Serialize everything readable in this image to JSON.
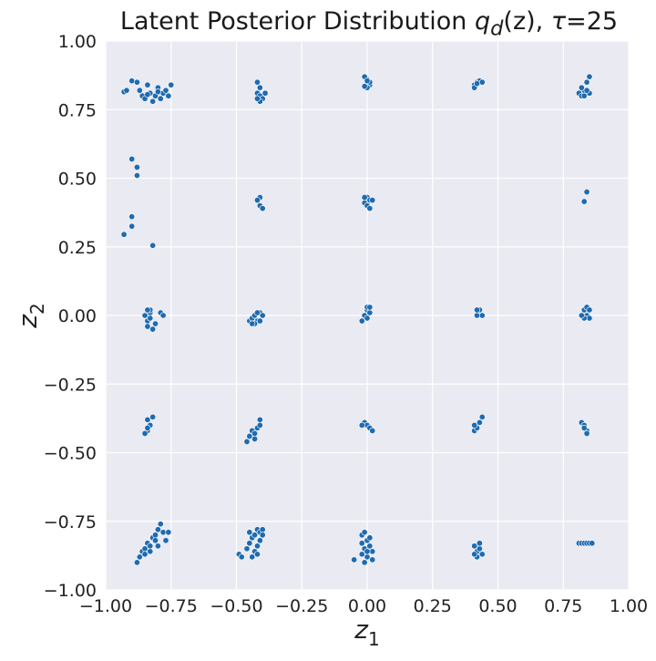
{
  "chart_data": {
    "type": "scatter",
    "title": {
      "prefix": "Latent Posterior Distribution ",
      "q": "q",
      "q_sub": "d",
      "arg": "(z), ",
      "tau": "τ",
      "tau_value": "=25"
    },
    "xlabel": {
      "main": "z",
      "sub": "1"
    },
    "ylabel": {
      "main": "z",
      "sub": "2"
    },
    "xlim": [
      -1.0,
      1.0
    ],
    "ylim": [
      -1.0,
      1.0
    ],
    "xticks": [
      -1.0,
      -0.75,
      -0.5,
      -0.25,
      0.0,
      0.25,
      0.5,
      0.75,
      1.0
    ],
    "yticks": [
      -1.0,
      -0.75,
      -0.5,
      -0.25,
      0.0,
      0.25,
      0.5,
      0.75,
      1.0
    ],
    "xtick_labels": [
      "−1.00",
      "−0.75",
      "−0.50",
      "−0.25",
      "0.00",
      "0.25",
      "0.50",
      "0.75",
      "1.00"
    ],
    "ytick_labels": [
      "−1.00",
      "−0.75",
      "−0.50",
      "−0.25",
      "0.00",
      "0.25",
      "0.50",
      "0.75",
      "1.00"
    ],
    "grid": true,
    "legend": "none",
    "colors": {
      "background": "#eaeaf2",
      "grid": "#ffffff",
      "marker": "#1f6bb0",
      "marker_edge": "#ffffff"
    },
    "points": [
      [
        -0.93,
        0.815
      ],
      [
        -0.92,
        0.82
      ],
      [
        -0.9,
        0.855
      ],
      [
        -0.88,
        0.85
      ],
      [
        -0.87,
        0.82
      ],
      [
        -0.86,
        0.8
      ],
      [
        -0.85,
        0.79
      ],
      [
        -0.84,
        0.84
      ],
      [
        -0.83,
        0.81
      ],
      [
        -0.82,
        0.78
      ],
      [
        -0.81,
        0.8
      ],
      [
        -0.8,
        0.83
      ],
      [
        -0.79,
        0.79
      ],
      [
        -0.78,
        0.81
      ],
      [
        -0.77,
        0.82
      ],
      [
        -0.76,
        0.8
      ],
      [
        -0.75,
        0.84
      ],
      [
        -0.84,
        0.805
      ],
      [
        -0.8,
        0.815
      ],
      [
        -0.42,
        0.85
      ],
      [
        -0.41,
        0.83
      ],
      [
        -0.42,
        0.81
      ],
      [
        -0.41,
        0.8
      ],
      [
        -0.4,
        0.79
      ],
      [
        -0.41,
        0.78
      ],
      [
        -0.39,
        0.81
      ],
      [
        -0.42,
        0.79
      ],
      [
        0.0,
        0.86
      ],
      [
        -0.01,
        0.87
      ],
      [
        0.0,
        0.845
      ],
      [
        0.01,
        0.84
      ],
      [
        0.0,
        0.83
      ],
      [
        0.01,
        0.85
      ],
      [
        -0.01,
        0.835
      ],
      [
        0.0,
        0.855
      ],
      [
        0.41,
        0.84
      ],
      [
        0.42,
        0.85
      ],
      [
        0.43,
        0.855
      ],
      [
        0.41,
        0.83
      ],
      [
        0.42,
        0.845
      ],
      [
        0.44,
        0.85
      ],
      [
        0.81,
        0.81
      ],
      [
        0.82,
        0.8
      ],
      [
        0.83,
        0.82
      ],
      [
        0.84,
        0.85
      ],
      [
        0.85,
        0.87
      ],
      [
        0.82,
        0.83
      ],
      [
        0.83,
        0.8
      ],
      [
        0.85,
        0.81
      ],
      [
        0.84,
        0.82
      ],
      [
        -0.9,
        0.57
      ],
      [
        -0.88,
        0.54
      ],
      [
        -0.88,
        0.51
      ],
      [
        -0.9,
        0.36
      ],
      [
        -0.9,
        0.325
      ],
      [
        -0.93,
        0.295
      ],
      [
        -0.82,
        0.255
      ],
      [
        -0.41,
        0.43
      ],
      [
        -0.41,
        0.4
      ],
      [
        -0.4,
        0.39
      ],
      [
        -0.42,
        0.42
      ],
      [
        0.0,
        0.43
      ],
      [
        0.01,
        0.42
      ],
      [
        -0.01,
        0.41
      ],
      [
        0.0,
        0.4
      ],
      [
        0.01,
        0.39
      ],
      [
        0.02,
        0.42
      ],
      [
        -0.01,
        0.43
      ],
      [
        0.84,
        0.45
      ],
      [
        0.83,
        0.415
      ],
      [
        -0.85,
        0.0
      ],
      [
        -0.84,
        -0.02
      ],
      [
        -0.83,
        0.01
      ],
      [
        -0.84,
        -0.04
      ],
      [
        -0.82,
        -0.05
      ],
      [
        -0.81,
        -0.03
      ],
      [
        -0.83,
        0.02
      ],
      [
        -0.79,
        0.01
      ],
      [
        -0.78,
        0.0
      ],
      [
        -0.84,
        0.02
      ],
      [
        -0.83,
        -0.01
      ],
      [
        -0.45,
        -0.02
      ],
      [
        -0.44,
        -0.01
      ],
      [
        -0.43,
        0.0
      ],
      [
        -0.42,
        -0.02
      ],
      [
        -0.41,
        0.01
      ],
      [
        -0.4,
        0.0
      ],
      [
        -0.43,
        -0.03
      ],
      [
        -0.41,
        -0.02
      ],
      [
        -0.42,
        0.01
      ],
      [
        -0.44,
        -0.03
      ],
      [
        0.0,
        0.02
      ],
      [
        -0.01,
        0.0
      ],
      [
        0.0,
        -0.01
      ],
      [
        0.01,
        0.01
      ],
      [
        -0.02,
        -0.02
      ],
      [
        0.0,
        0.03
      ],
      [
        0.01,
        0.03
      ],
      [
        0.42,
        0.0
      ],
      [
        0.43,
        0.02
      ],
      [
        0.44,
        0.0
      ],
      [
        0.42,
        0.02
      ],
      [
        0.83,
        0.02
      ],
      [
        0.84,
        0.0
      ],
      [
        0.85,
        -0.01
      ],
      [
        0.83,
        -0.01
      ],
      [
        0.84,
        0.03
      ],
      [
        0.82,
        0.0
      ],
      [
        0.85,
        0.02
      ],
      [
        -0.84,
        -0.38
      ],
      [
        -0.83,
        -0.4
      ],
      [
        -0.84,
        -0.42
      ],
      [
        -0.85,
        -0.43
      ],
      [
        -0.82,
        -0.37
      ],
      [
        -0.84,
        -0.41
      ],
      [
        -0.46,
        -0.46
      ],
      [
        -0.45,
        -0.44
      ],
      [
        -0.44,
        -0.42
      ],
      [
        -0.43,
        -0.43
      ],
      [
        -0.42,
        -0.41
      ],
      [
        -0.41,
        -0.38
      ],
      [
        -0.43,
        -0.45
      ],
      [
        -0.41,
        -0.4
      ],
      [
        -0.01,
        -0.39
      ],
      [
        0.0,
        -0.4
      ],
      [
        0.01,
        -0.41
      ],
      [
        0.02,
        -0.42
      ],
      [
        -0.02,
        -0.4
      ],
      [
        0.41,
        -0.42
      ],
      [
        0.42,
        -0.41
      ],
      [
        0.43,
        -0.39
      ],
      [
        0.44,
        -0.37
      ],
      [
        0.41,
        -0.4
      ],
      [
        0.82,
        -0.39
      ],
      [
        0.83,
        -0.4
      ],
      [
        0.84,
        -0.42
      ],
      [
        0.84,
        -0.43
      ],
      [
        0.83,
        -0.41
      ],
      [
        -0.88,
        -0.9
      ],
      [
        -0.87,
        -0.88
      ],
      [
        -0.86,
        -0.86
      ],
      [
        -0.85,
        -0.85
      ],
      [
        -0.84,
        -0.83
      ],
      [
        -0.83,
        -0.84
      ],
      [
        -0.82,
        -0.81
      ],
      [
        -0.81,
        -0.8
      ],
      [
        -0.8,
        -0.78
      ],
      [
        -0.79,
        -0.76
      ],
      [
        -0.78,
        -0.79
      ],
      [
        -0.77,
        -0.82
      ],
      [
        -0.76,
        -0.79
      ],
      [
        -0.83,
        -0.86
      ],
      [
        -0.85,
        -0.87
      ],
      [
        -0.8,
        -0.84
      ],
      [
        -0.81,
        -0.82
      ],
      [
        -0.49,
        -0.87
      ],
      [
        -0.48,
        -0.88
      ],
      [
        -0.46,
        -0.85
      ],
      [
        -0.45,
        -0.83
      ],
      [
        -0.44,
        -0.81
      ],
      [
        -0.43,
        -0.8
      ],
      [
        -0.42,
        -0.78
      ],
      [
        -0.41,
        -0.79
      ],
      [
        -0.4,
        -0.78
      ],
      [
        -0.41,
        -0.82
      ],
      [
        -0.43,
        -0.86
      ],
      [
        -0.44,
        -0.88
      ],
      [
        -0.42,
        -0.87
      ],
      [
        -0.45,
        -0.79
      ],
      [
        -0.42,
        -0.84
      ],
      [
        -0.4,
        -0.8
      ],
      [
        -0.05,
        -0.89
      ],
      [
        -0.02,
        -0.8
      ],
      [
        -0.01,
        -0.79
      ],
      [
        0.0,
        -0.82
      ],
      [
        0.01,
        -0.84
      ],
      [
        0.02,
        -0.86
      ],
      [
        0.0,
        -0.88
      ],
      [
        -0.02,
        -0.87
      ],
      [
        -0.01,
        -0.85
      ],
      [
        0.01,
        -0.81
      ],
      [
        -0.02,
        -0.83
      ],
      [
        0.0,
        -0.86
      ],
      [
        0.02,
        -0.89
      ],
      [
        -0.01,
        -0.9
      ],
      [
        0.41,
        -0.84
      ],
      [
        0.42,
        -0.86
      ],
      [
        0.43,
        -0.85
      ],
      [
        0.44,
        -0.87
      ],
      [
        0.42,
        -0.88
      ],
      [
        0.41,
        -0.87
      ],
      [
        0.43,
        -0.83
      ],
      [
        0.81,
        -0.83
      ],
      [
        0.82,
        -0.83
      ],
      [
        0.83,
        -0.83
      ],
      [
        0.84,
        -0.83
      ],
      [
        0.85,
        -0.83
      ],
      [
        0.86,
        -0.83
      ]
    ]
  }
}
